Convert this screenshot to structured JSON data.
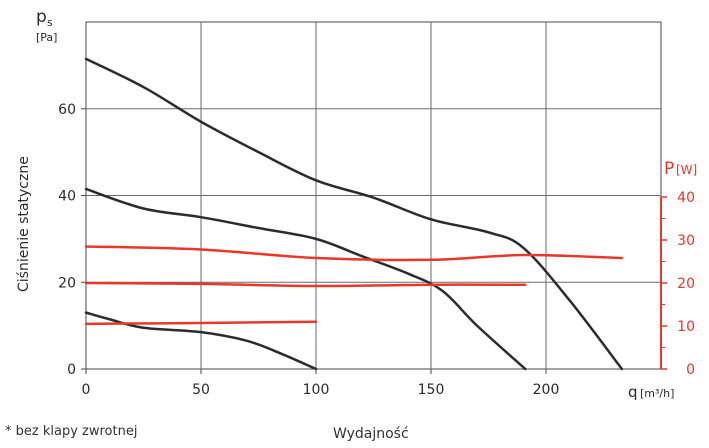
{
  "chart_data": {
    "type": "line",
    "x_axis": {
      "label": "q",
      "unit": "[m³/h]",
      "ticks": [
        "0",
        "50",
        "100",
        "150",
        "200"
      ],
      "range": [
        0,
        250
      ]
    },
    "y_axis_left": {
      "symbol": "p",
      "subscript": "s",
      "unit": "[Pa]",
      "title": "Ciśnienie statyczne",
      "ticks": [
        "0",
        "20",
        "40",
        "60"
      ],
      "range": [
        0,
        80
      ]
    },
    "y_axis_right": {
      "symbol": "P",
      "unit": "[W]",
      "ticks": [
        "0",
        "10",
        "20",
        "30",
        "40"
      ],
      "range": [
        0,
        40
      ],
      "color": "#e8382a"
    },
    "grid": true,
    "series": [
      {
        "axis": "left",
        "color": "#2b2b33",
        "x": [
          0,
          25,
          50,
          75,
          100,
          125,
          150,
          175,
          190,
          210,
          233
        ],
        "y": [
          71.5,
          65,
          57,
          50,
          43.5,
          39.5,
          34.5,
          31.5,
          28,
          16,
          0
        ]
      },
      {
        "axis": "left",
        "color": "#2b2b33",
        "x": [
          0,
          25,
          50,
          75,
          100,
          120,
          140,
          155,
          170,
          191
        ],
        "y": [
          41.5,
          37,
          35,
          32.5,
          30,
          26,
          22,
          18,
          10,
          0
        ]
      },
      {
        "axis": "left",
        "color": "#2b2b33",
        "x": [
          0,
          10,
          25,
          50,
          70,
          85,
          100
        ],
        "y": [
          13,
          11.5,
          9.5,
          8.5,
          6.5,
          3.5,
          0
        ]
      },
      {
        "axis": "right",
        "color": "#e8382a",
        "x": [
          0,
          50,
          100,
          150,
          190,
          233
        ],
        "y": [
          28.5,
          27.8,
          25.8,
          25.4,
          26.5,
          25.8
        ]
      },
      {
        "axis": "right",
        "color": "#e8382a",
        "x": [
          0,
          50,
          100,
          150,
          191
        ],
        "y": [
          20,
          19.8,
          19.3,
          19.6,
          19.6
        ]
      },
      {
        "axis": "right",
        "color": "#e8382a",
        "x": [
          0,
          50,
          100
        ],
        "y": [
          10.5,
          10.7,
          11
        ]
      }
    ]
  },
  "footer": {
    "note": "* bez klapy zwrotnej",
    "x_title": "Wydajność"
  }
}
